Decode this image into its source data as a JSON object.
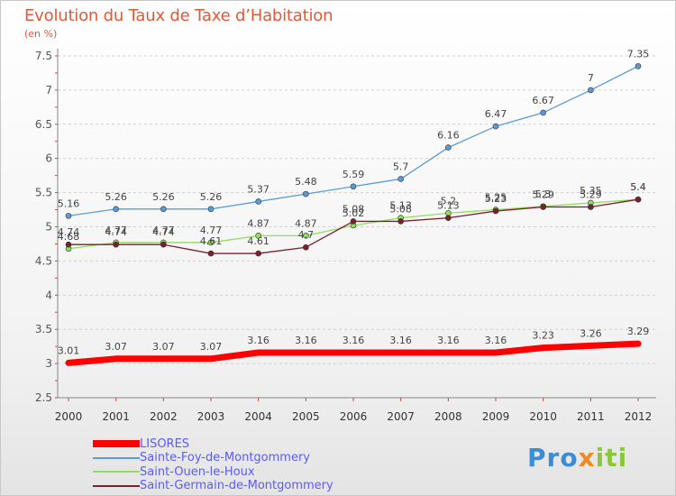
{
  "header": {
    "title": "Evolution du Taux de Taxe d’Habitation",
    "unit": "(en %)"
  },
  "chart_data": {
    "type": "line",
    "title": "Evolution du Taux de Taxe d’Habitation",
    "ylabel": "(en %)",
    "xlabel": "",
    "x": [
      "2000",
      "2001",
      "2002",
      "2003",
      "2004",
      "2005",
      "2006",
      "2007",
      "2008",
      "2009",
      "2010",
      "2011",
      "2012"
    ],
    "ylim": [
      2.5,
      7.5
    ],
    "yticks": [
      "2.5",
      "3",
      "3.5",
      "4",
      "4.5",
      "5",
      "5.5",
      "6",
      "6.5",
      "7",
      "7.5"
    ],
    "grid": "horizontal dashed",
    "legend_position": "bottom-left",
    "series": [
      {
        "name": "LISORES",
        "color": "#ff0000",
        "values": [
          3.01,
          3.07,
          3.07,
          3.07,
          3.16,
          3.16,
          3.16,
          3.16,
          3.16,
          3.16,
          3.23,
          3.26,
          3.29
        ],
        "labels": [
          "3.01",
          "3.07",
          "3.07",
          "3.07",
          "3.16",
          "3.16",
          "3.16",
          "3.16",
          "3.16",
          "3.16",
          "3.23",
          "3.26",
          "3.29"
        ]
      },
      {
        "name": "Sainte-Foy-de-Montgommery",
        "color": "#5b9bd5",
        "values": [
          5.16,
          5.26,
          5.26,
          5.26,
          5.37,
          5.48,
          5.59,
          5.7,
          6.16,
          6.47,
          6.67,
          7.0,
          7.35
        ],
        "labels": [
          "5.16",
          "5.26",
          "5.26",
          "5.26",
          "5.37",
          "5.48",
          "5.59",
          "5.7",
          "6.16",
          "6.47",
          "6.67",
          "7",
          "7.35"
        ]
      },
      {
        "name": "Saint-Ouen-le-Houx",
        "color": "#8ee05a",
        "values": [
          4.68,
          4.77,
          4.77,
          4.77,
          4.87,
          4.87,
          5.02,
          5.13,
          5.2,
          5.25,
          5.3,
          5.35,
          5.4
        ],
        "labels": [
          "4.68",
          "4.77",
          "4.77",
          "4.77",
          "4.87",
          "4.87",
          "5.02",
          "5.13",
          "5.2",
          "5.25",
          "5.3",
          "5.35",
          "5.4"
        ]
      },
      {
        "name": "Saint-Germain-de-Montgommery",
        "color": "#7a1f2b",
        "values": [
          4.74,
          4.74,
          4.74,
          4.61,
          4.61,
          4.7,
          5.08,
          5.08,
          5.13,
          5.23,
          5.29,
          5.29,
          5.4
        ],
        "labels": [
          "4.74",
          "4.74",
          "4.74",
          "4.61",
          "4.61",
          "4.7",
          "5.08",
          "5.08",
          "5.13",
          "5.23",
          "5.29",
          "5.29",
          "5.4"
        ]
      }
    ]
  },
  "legend": {
    "items": [
      {
        "label": "LISORES"
      },
      {
        "label": "Sainte-Foy-de-Montgommery"
      },
      {
        "label": "Saint-Ouen-le-Houx"
      },
      {
        "label": "Saint-Germain-de-Montgommery"
      }
    ]
  },
  "logo": {
    "p1": "Pro",
    "p2": "x",
    "p3": "iti"
  }
}
